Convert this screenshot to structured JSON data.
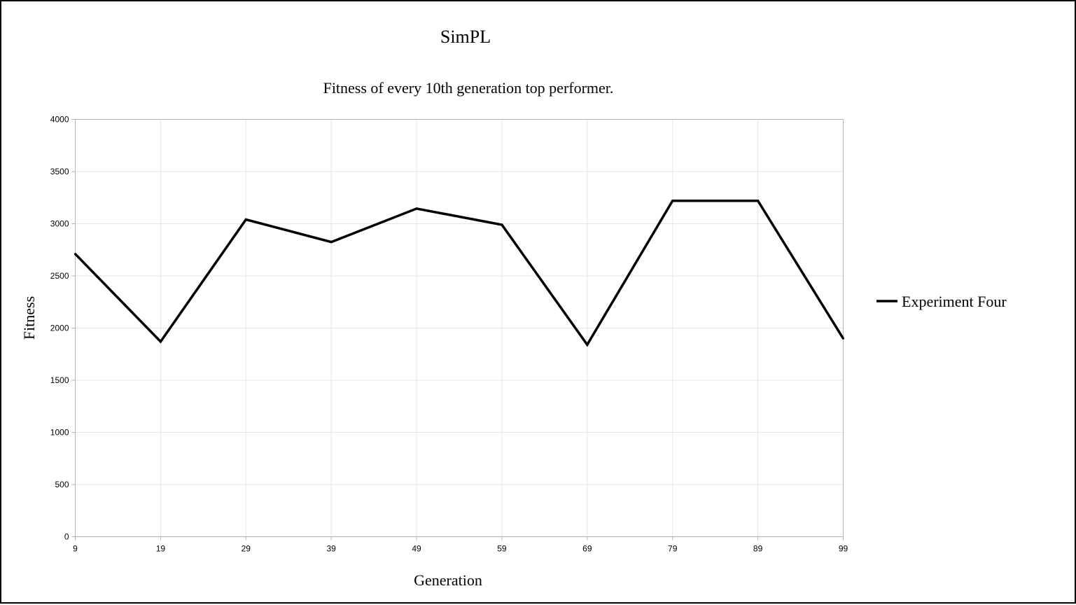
{
  "chart_data": {
    "type": "line",
    "title": "SimPL",
    "subtitle": "Fitness of every 10th generation top performer.",
    "xlabel": "Generation",
    "ylabel": "Fitness",
    "categories": [
      "9",
      "19",
      "29",
      "39",
      "49",
      "59",
      "69",
      "79",
      "89",
      "99"
    ],
    "ylim": [
      0,
      4000
    ],
    "yticks": [
      0,
      500,
      1000,
      1500,
      2000,
      2500,
      3000,
      3500,
      4000
    ],
    "grid": true,
    "legend_position": "right",
    "series": [
      {
        "name": "Experiment Four",
        "color": "#000000",
        "values": [
          2710,
          1870,
          3040,
          2825,
          3145,
          2990,
          1840,
          3220,
          3220,
          1900
        ]
      }
    ]
  }
}
